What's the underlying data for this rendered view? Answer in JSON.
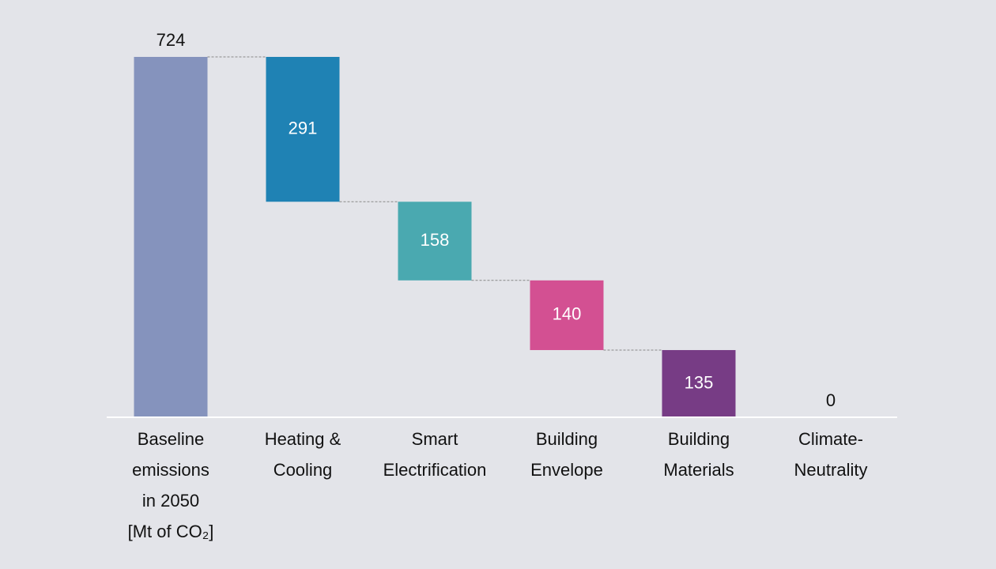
{
  "chart_data": {
    "type": "waterfall",
    "categories": [
      [
        "Baseline",
        "emissions",
        "in 2050",
        "[Mt of CO₂]"
      ],
      [
        "Heating &",
        "Cooling"
      ],
      [
        "Smart",
        "Electrification"
      ],
      [
        "Building",
        "Envelope"
      ],
      [
        "Building",
        "Materials"
      ],
      [
        "Climate-",
        "Neutrality"
      ]
    ],
    "values": [
      724,
      291,
      158,
      140,
      135,
      0
    ],
    "measures": [
      "total",
      "decrease",
      "decrease",
      "decrease",
      "decrease",
      "total"
    ],
    "colors": [
      "#8593bd",
      "#1f82b4",
      "#4aa9b0",
      "#d35092",
      "#773c85",
      "#8593bd"
    ]
  }
}
